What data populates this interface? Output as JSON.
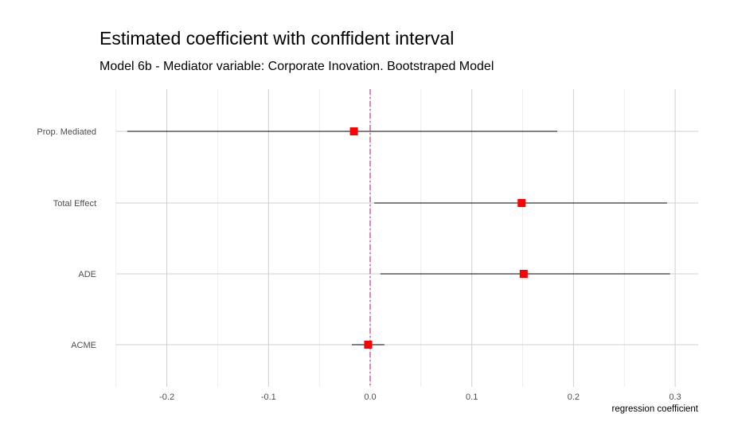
{
  "chart_data": {
    "type": "scatter",
    "title": "Estimated coefficient with conffident interval",
    "subtitle": "Model 6b - Mediator variable: Corporate Inovation. Bootstraped Model",
    "xlabel": "regression coefficient",
    "ylabel": "",
    "xlim": [
      -0.25,
      0.32
    ],
    "x_ticks": [
      -0.2,
      -0.1,
      0.0,
      0.1,
      0.2,
      0.3
    ],
    "x_tick_labels": [
      "-0.2",
      "-0.1",
      "0.0",
      "0.1",
      "0.2",
      "0.3"
    ],
    "categories": [
      "Prop. Mediated",
      "Total Effect",
      "ADE",
      "ACME"
    ],
    "estimates": [
      -0.016,
      0.149,
      0.151,
      -0.002
    ],
    "ci_lower": [
      -0.239,
      0.004,
      0.01,
      -0.018
    ],
    "ci_upper": [
      0.184,
      0.292,
      0.295,
      0.014
    ],
    "reference_line": {
      "x": 0.0,
      "style": "dash-dot",
      "color": "#cc6aa8"
    },
    "point_color": "#ff0000",
    "grid": true,
    "legend": "none"
  }
}
